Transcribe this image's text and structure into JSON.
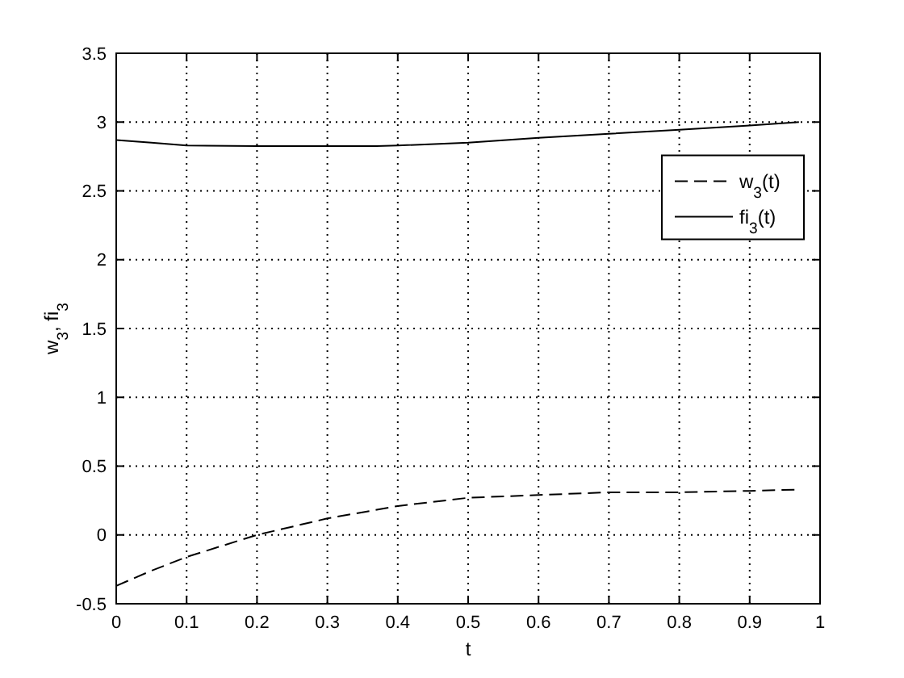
{
  "chart_data": {
    "type": "line",
    "xlabel": "t",
    "ylabel": "w$_{3}$, fi$_{3}$",
    "xlim": [
      0,
      1
    ],
    "ylim": [
      -0.5,
      3.5
    ],
    "xticks": [
      0,
      0.1,
      0.2,
      0.3,
      0.4,
      0.5,
      0.6,
      0.7,
      0.8,
      0.9,
      1
    ],
    "yticks": [
      -0.5,
      0,
      0.5,
      1,
      1.5,
      2,
      2.5,
      3,
      3.5
    ],
    "grid": true,
    "legend": "right",
    "marker": "none",
    "series": [
      {
        "name": "w$_{3}$(t)",
        "color": "#000000",
        "line_style": "dashed",
        "x": [
          0,
          0.05,
          0.1,
          0.15,
          0.2,
          0.3,
          0.4,
          0.5,
          0.6,
          0.7,
          0.8,
          0.9,
          0.97
        ],
        "values": [
          -0.37,
          -0.26,
          -0.16,
          -0.08,
          0,
          0.12,
          0.21,
          0.27,
          0.29,
          0.31,
          0.31,
          0.32,
          0.33
        ]
      },
      {
        "name": "fi$_{3}$(t)",
        "color": "#000000",
        "line_style": "solid",
        "x": [
          0,
          0.05,
          0.1,
          0.2,
          0.3,
          0.37,
          0.4,
          0.5,
          0.6,
          0.7,
          0.8,
          0.9,
          0.97
        ],
        "values": [
          2.87,
          2.85,
          2.83,
          2.825,
          2.825,
          2.825,
          2.83,
          2.85,
          2.885,
          2.915,
          2.945,
          2.975,
          3.0
        ]
      }
    ]
  }
}
